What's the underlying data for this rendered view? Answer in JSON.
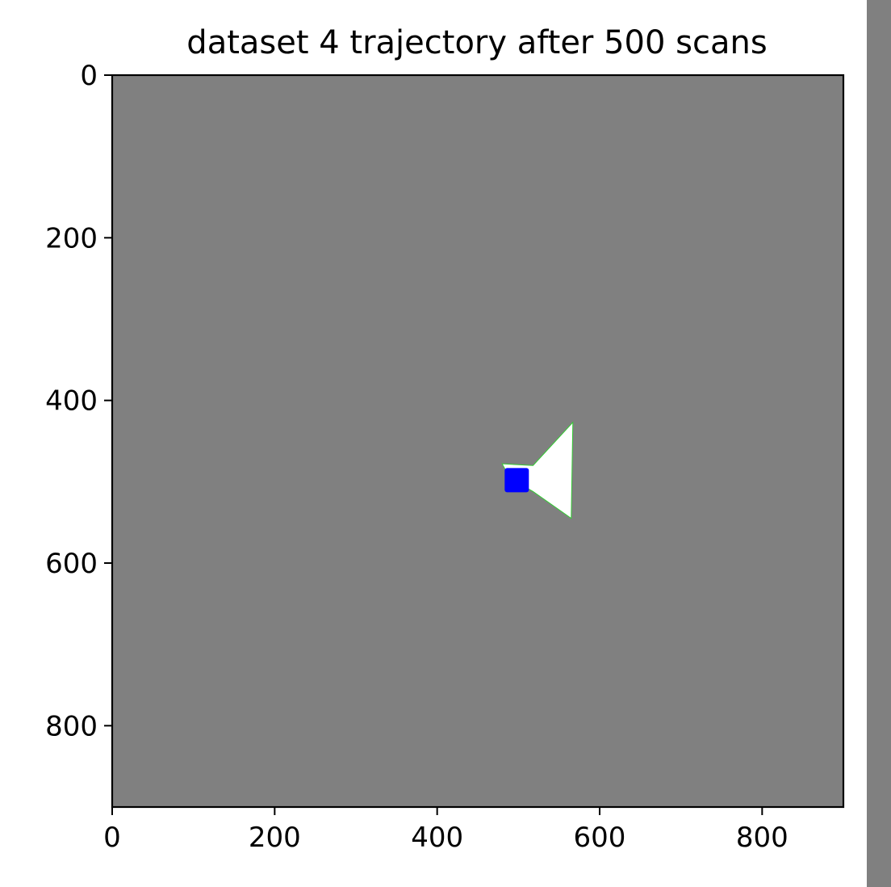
{
  "chart_data": {
    "type": "heatmap",
    "title": "dataset 4 trajectory after 500 scans",
    "xlim": [
      0,
      900
    ],
    "ylim": [
      900,
      0
    ],
    "y_axis_inverted": true,
    "grid": false,
    "x_ticks": [
      0,
      200,
      400,
      600,
      800
    ],
    "y_ticks": [
      0,
      200,
      400,
      600,
      800
    ],
    "x_tick_labels": [
      "0",
      "200",
      "400",
      "600",
      "800"
    ],
    "y_tick_labels": [
      "0",
      "200",
      "400",
      "600",
      "800"
    ],
    "colors": {
      "unknown": "#808080",
      "free": "#ffffff",
      "boundary": "#33cc33",
      "robot": "#0000ff",
      "colorbar": "#808080"
    },
    "free_region": [
      {
        "x": 480,
        "y": 478
      },
      {
        "x": 518,
        "y": 480
      },
      {
        "x": 567,
        "y": 427
      },
      {
        "x": 565,
        "y": 545
      },
      {
        "x": 518,
        "y": 512
      },
      {
        "x": 490,
        "y": 496
      }
    ],
    "trajectory": [
      {
        "x": 498,
        "y": 498
      }
    ]
  }
}
